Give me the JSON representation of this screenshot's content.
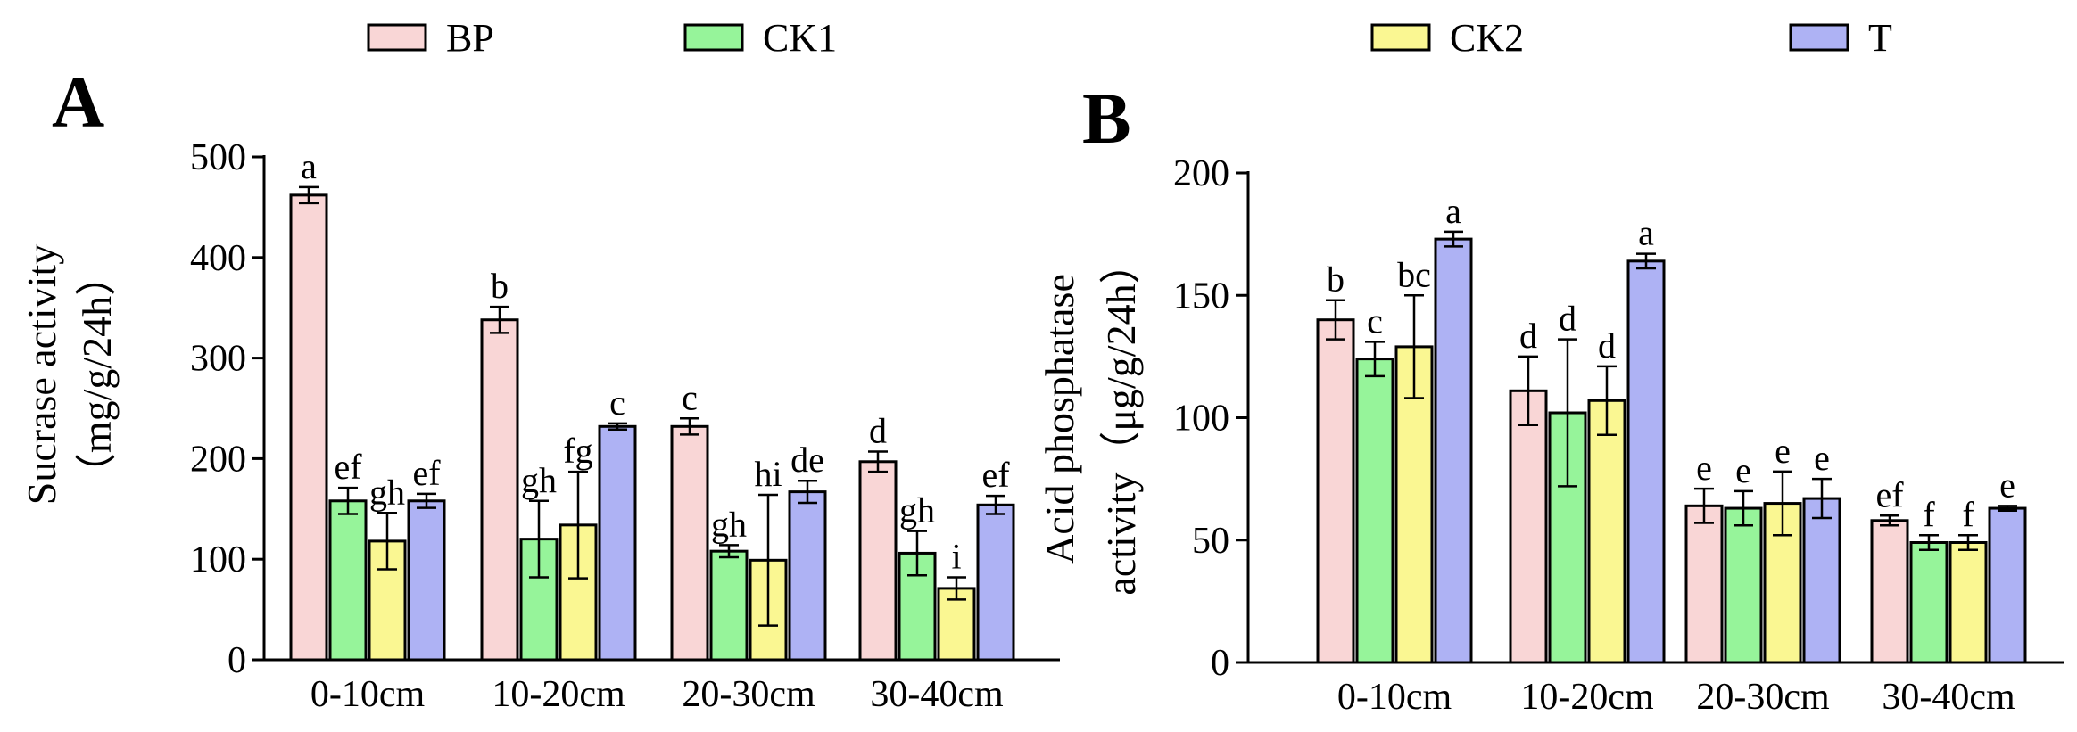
{
  "legend": [
    {
      "name": "BP",
      "color": "#F9D6D6"
    },
    {
      "name": "CK1",
      "color": "#96F49A"
    },
    {
      "name": "CK2",
      "color": "#FAF792"
    },
    {
      "name": "T",
      "color": "#AEB2F4"
    }
  ],
  "chart_data": [
    {
      "type": "bar",
      "panel": "A",
      "ylabel_lines": [
        "Sucrase activity",
        "（mg/g/24h）"
      ],
      "ylim": [
        0,
        500
      ],
      "yticks": [
        0,
        100,
        200,
        300,
        400,
        500
      ],
      "categories": [
        "0-10cm",
        "10-20cm",
        "20-30cm",
        "30-40cm"
      ],
      "series": [
        {
          "name": "BP",
          "color": "#F9D6D6",
          "values": [
            462,
            338,
            232,
            197
          ],
          "errors": [
            8,
            13,
            8,
            10
          ],
          "labels": [
            "a",
            "b",
            "c",
            "d"
          ]
        },
        {
          "name": "CK1",
          "color": "#96F49A",
          "values": [
            158,
            120,
            108,
            106
          ],
          "errors": [
            13,
            38,
            6,
            22
          ],
          "labels": [
            "ef",
            "gh",
            "gh",
            "gh"
          ]
        },
        {
          "name": "CK2",
          "color": "#FAF792",
          "values": [
            118,
            134,
            99,
            71
          ],
          "errors": [
            28,
            53,
            65,
            11
          ],
          "labels": [
            "gh",
            "fg",
            "hi",
            "i"
          ]
        },
        {
          "name": "T",
          "color": "#AEB2F4",
          "values": [
            158,
            232,
            167,
            154
          ],
          "errors": [
            7,
            3,
            11,
            9
          ],
          "labels": [
            "ef",
            "c",
            "de",
            "ef"
          ]
        }
      ]
    },
    {
      "type": "bar",
      "panel": "B",
      "ylabel_lines": [
        "Acid phosphatase",
        "activity（μg/g/24h）"
      ],
      "ylim": [
        0,
        200
      ],
      "yticks": [
        0,
        50,
        100,
        150,
        200
      ],
      "categories": [
        "0-10cm",
        "10-20cm",
        "20-30cm",
        "30-40cm"
      ],
      "series": [
        {
          "name": "BP",
          "color": "#F9D6D6",
          "values": [
            140,
            111,
            64,
            58
          ],
          "errors": [
            8,
            14,
            7,
            2
          ],
          "labels": [
            "b",
            "d",
            "e",
            "ef"
          ]
        },
        {
          "name": "CK1",
          "color": "#96F49A",
          "values": [
            124,
            102,
            63,
            49
          ],
          "errors": [
            7,
            30,
            7,
            3
          ],
          "labels": [
            "c",
            "d",
            "e",
            "f"
          ]
        },
        {
          "name": "CK2",
          "color": "#FAF792",
          "values": [
            129,
            107,
            65,
            49
          ],
          "errors": [
            21,
            14,
            13,
            3
          ],
          "labels": [
            "bc",
            "d",
            "e",
            "f"
          ]
        },
        {
          "name": "T",
          "color": "#AEB2F4",
          "values": [
            173,
            164,
            67,
            63
          ],
          "errors": [
            3,
            3,
            8,
            1
          ],
          "labels": [
            "a",
            "a",
            "e",
            "e"
          ]
        }
      ]
    }
  ]
}
